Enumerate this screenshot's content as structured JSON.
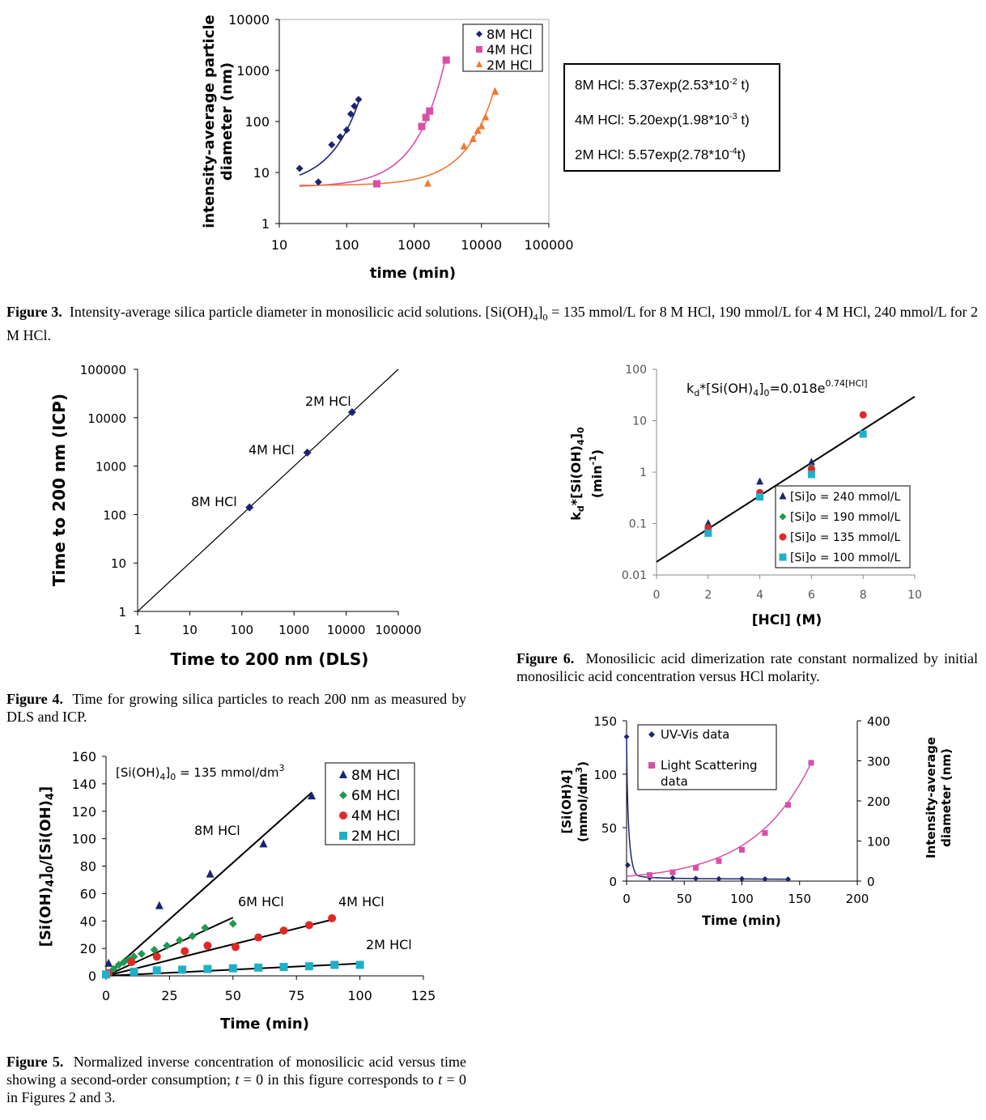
{
  "fig3": {
    "caption_label": "Figure 3.",
    "caption_text": "Intensity-average silica particle diameter in monosilicic acid solutions. [Si(OH)4]0 = 135 mmol/L for 8 M HCl, 190 mmol/L for 4 M HCl, 240 mmol/L for 2 M HCl.",
    "equations": [
      "8M HCl: 5.37exp(2.53*10-2 t)",
      "4M HCl: 5.20exp(1.98*10-3 t)",
      "2M HCl: 5.57exp(2.78*10-4t)"
    ]
  },
  "fig4": {
    "caption_label": "Figure 4.",
    "caption_text": "Time for growing silica particles to reach 200 nm as measured by DLS and ICP."
  },
  "fig5": {
    "caption_label": "Figure 5.",
    "caption_text": "Normalized inverse concentration of monosilicic acid versus time showing a second-order consumption; t = 0 in this figure corresponds to t = 0 in Figures 2 and 3."
  },
  "fig6": {
    "caption_label": "Figure 6.",
    "caption_text": "Monosilicic acid dimerization rate constant normalized by initial monosilicic acid concentration versus HCl molarity."
  },
  "chart_data": [
    {
      "id": "figure-3",
      "type": "scatter",
      "xlabel": "time (min)",
      "ylabel": "intensity-average particle diameter (nm)",
      "x_scale": "log",
      "y_scale": "log",
      "xlim": [
        10,
        100000
      ],
      "ylim": [
        1,
        10000
      ],
      "x_ticks": [
        "10",
        "100",
        "1000",
        "10000",
        "100000"
      ],
      "y_ticks": [
        "1",
        "10",
        "100",
        "1000",
        "10000"
      ],
      "legend": "top-right",
      "series": [
        {
          "name": "8M HCl",
          "color": "#1c2472",
          "marker": "diamond",
          "x": [
            20,
            38,
            60,
            80,
            100,
            115,
            130,
            150
          ],
          "y": [
            12,
            6.5,
            35,
            50,
            68,
            140,
            200,
            270
          ]
        },
        {
          "name": "4M HCl",
          "color": "#d94fa8",
          "marker": "square",
          "x": [
            280,
            1300,
            1500,
            1700,
            3000
          ],
          "y": [
            6,
            80,
            120,
            160,
            1600
          ]
        },
        {
          "name": "2M HCl",
          "color": "#f07830",
          "marker": "triangle",
          "x": [
            1600,
            5500,
            7500,
            8800,
            10000,
            11500,
            16000
          ],
          "y": [
            6,
            32,
            45,
            65,
            80,
            120,
            380
          ]
        }
      ],
      "fits": [
        {
          "name": "8M HCl",
          "a": 5.37,
          "k": 0.0253
        },
        {
          "name": "4M HCl",
          "a": 5.2,
          "k": 0.00198
        },
        {
          "name": "2M HCl",
          "a": 5.57,
          "k": 0.000278
        }
      ]
    },
    {
      "id": "figure-4",
      "type": "scatter",
      "xlabel": "Time to 200 nm (DLS)",
      "ylabel": "Time to 200 nm (ICP)",
      "x_scale": "log",
      "y_scale": "log",
      "xlim": [
        1,
        100000
      ],
      "ylim": [
        1,
        100000
      ],
      "x_ticks": [
        "1",
        "10",
        "100",
        "1000",
        "10000",
        "100000"
      ],
      "y_ticks": [
        "1",
        "10",
        "100",
        "1000",
        "10000",
        "100000"
      ],
      "series": [
        {
          "color": "#1c2472",
          "marker": "diamond",
          "x": [
            140,
            1800,
            13000
          ],
          "y": [
            140,
            1900,
            13000
          ]
        }
      ],
      "annotations": [
        "8M HCl",
        "4M HCl",
        "2M HCl"
      ]
    },
    {
      "id": "figure-5",
      "type": "scatter",
      "xlabel": "Time (min)",
      "ylabel": "[Si(OH)4]0/[Si(OH)4]",
      "xlim": [
        0,
        125
      ],
      "ylim": [
        0,
        160
      ],
      "x_ticks": [
        "0",
        "25",
        "50",
        "75",
        "100",
        "125"
      ],
      "y_ticks": [
        "0",
        "20",
        "40",
        "60",
        "80",
        "100",
        "120",
        "140",
        "160"
      ],
      "legend": "top-right",
      "inset_text": "[Si(OH)4]0 = 135 mmol/dm3",
      "series": [
        {
          "name": "8M HCl",
          "color": "#1c2472",
          "marker": "triangle",
          "x": [
            1,
            21,
            41,
            62,
            81
          ],
          "y": [
            9,
            51,
            74,
            96,
            131
          ],
          "fit_slope": 1.65
        },
        {
          "name": "6M HCl",
          "color": "#1f9a50",
          "marker": "diamond",
          "x": [
            1,
            3,
            5,
            7,
            9,
            11,
            14,
            19,
            24,
            29,
            34,
            39,
            50
          ],
          "y": [
            1,
            5,
            8,
            10,
            12,
            14,
            16,
            19,
            22,
            26,
            29,
            35,
            38
          ],
          "fit_slope": 0.85
        },
        {
          "name": "4M HCl",
          "color": "#e02828",
          "marker": "circle",
          "x": [
            1,
            10,
            20,
            31,
            40,
            51,
            60,
            70,
            80,
            89
          ],
          "y": [
            2,
            10,
            14,
            18,
            22,
            21,
            28,
            33,
            37,
            42
          ],
          "fit_slope": 0.46
        },
        {
          "name": "2M HCl",
          "color": "#1fb0c8",
          "marker": "square",
          "x": [
            0,
            11,
            20,
            30,
            40,
            50,
            60,
            70,
            80,
            90,
            100
          ],
          "y": [
            1,
            3,
            4,
            4.5,
            5,
            5.5,
            6,
            6.5,
            7,
            8,
            8
          ],
          "fit_slope": 0.09
        }
      ],
      "annotations": [
        "8M HCl",
        "6M HCl",
        "4M HCl",
        "2M HCl"
      ]
    },
    {
      "id": "figure-6",
      "type": "scatter",
      "xlabel": "[HCl] (M)",
      "ylabel": "kd*[Si(OH)4]0 (min-1)",
      "y_scale": "log",
      "xlim": [
        0,
        10
      ],
      "ylim": [
        0.01,
        100
      ],
      "x_ticks": [
        "0",
        "2",
        "4",
        "6",
        "8",
        "10"
      ],
      "y_ticks": [
        "0.01",
        "0.1",
        "1",
        "10",
        "100"
      ],
      "equation": "kd*[Si(OH)4]0=0.018e0.74[HCl]",
      "legend": "bottom-right",
      "series": [
        {
          "name": "[Si]o = 240 mmol/L",
          "color": "#1c2472",
          "marker": "triangle",
          "x": [
            2,
            4,
            6
          ],
          "y": [
            0.1,
            0.65,
            1.55
          ]
        },
        {
          "name": "[Si]o = 190 mmol/L",
          "color": "#1f9a50",
          "marker": "diamond",
          "x": [
            2,
            4,
            6
          ],
          "y": [
            0.085,
            0.36,
            1.25
          ]
        },
        {
          "name": "[Si]o = 135 mmol/L",
          "color": "#e02828",
          "marker": "circle",
          "x": [
            2,
            4,
            6,
            8
          ],
          "y": [
            0.082,
            0.4,
            1.15,
            13
          ]
        },
        {
          "name": "[Si]o = 100 mmol/L",
          "color": "#1fb0c8",
          "marker": "square",
          "x": [
            2,
            4,
            6,
            8
          ],
          "y": [
            0.065,
            0.33,
            0.9,
            5.5
          ]
        }
      ]
    },
    {
      "id": "figure-7",
      "type": "line",
      "xlabel": "Time (min)",
      "ylabel": "[Si(OH)4] (mmol/dm3)",
      "y2label": "Intensity-average diameter (nm)",
      "xlim": [
        0,
        200
      ],
      "ylim": [
        0,
        150
      ],
      "y2lim": [
        0,
        400
      ],
      "x_ticks": [
        "0",
        "50",
        "100",
        "150",
        "200"
      ],
      "y_ticks": [
        "0",
        "50",
        "100",
        "150"
      ],
      "y2_ticks": [
        "0",
        "100",
        "200",
        "300",
        "400"
      ],
      "legend": "top-left",
      "series": [
        {
          "name": "UV-Vis data",
          "color": "#1c2472",
          "marker": "diamond",
          "axis": "left",
          "x": [
            0,
            1,
            20,
            40,
            60,
            80,
            100,
            120,
            140
          ],
          "y": [
            135,
            15,
            3,
            3,
            2.5,
            2.2,
            2.2,
            2,
            1.8
          ]
        },
        {
          "name": "Light Scattering data",
          "color": "#d94fa8",
          "marker": "square",
          "axis": "right",
          "x": [
            20,
            40,
            60,
            80,
            100,
            120,
            140,
            160
          ],
          "y": [
            15,
            22,
            33,
            50,
            78,
            120,
            190,
            295
          ]
        }
      ]
    }
  ]
}
